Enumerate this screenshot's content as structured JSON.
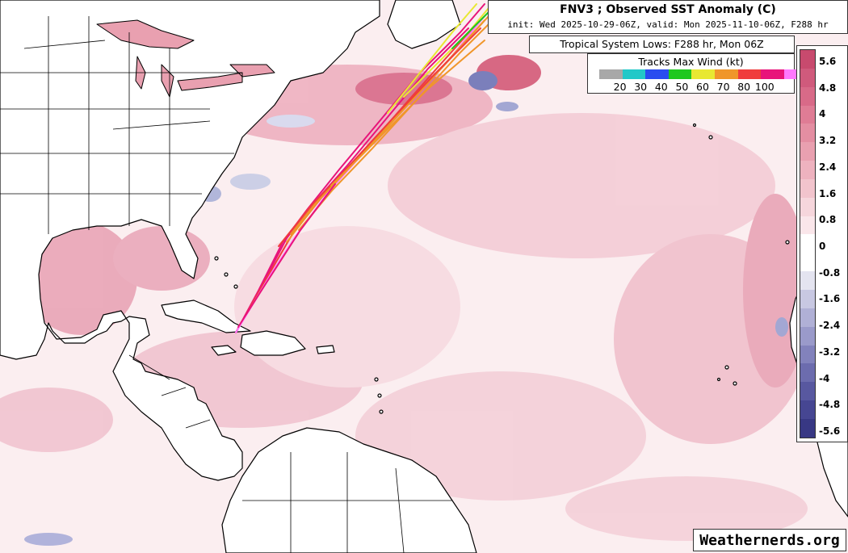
{
  "header": {
    "title": "FNV3 ; Observed SST Anomaly (C)",
    "subtitle": "init: Wed 2025-10-29-06Z, valid: Mon 2025-11-10-06Z, F288 hr"
  },
  "lows_label": "Tropical System Lows: F288 hr, Mon 06Z",
  "track_legend": {
    "title": "Tracks Max Wind (kt)",
    "labels": [
      "20",
      "30",
      "40",
      "50",
      "60",
      "70",
      "80",
      "100"
    ],
    "colors": [
      "#a8a8a8",
      "#22c8c8",
      "#2a4cf0",
      "#1ec81e",
      "#e8e832",
      "#f0962a",
      "#f03c3c",
      "#e8147a",
      "#ff78ff"
    ]
  },
  "colorbar": {
    "labels": [
      "5.6",
      "4.8",
      "4",
      "3.2",
      "2.4",
      "1.6",
      "0.8",
      "0",
      "-0.8",
      "-1.6",
      "-2.4",
      "-3.2",
      "-4",
      "-4.8",
      "-5.6"
    ],
    "colors": [
      "#c84a6e",
      "#d05a7c",
      "#d86a88",
      "#df7c95",
      "#e48ea2",
      "#e9a0b0",
      "#eeb2bf",
      "#f2c4cd",
      "#f6d6dc",
      "#fae6ea",
      "#ffffff",
      "#ffffff",
      "#e4e4f0",
      "#c8c8e2",
      "#b0b0d6",
      "#9a9aca",
      "#8282bc",
      "#6c6cae",
      "#5858a0",
      "#464692",
      "#383884"
    ]
  },
  "brand": "Weathernerds.org",
  "map_colors": {
    "ocean_base": "#fbeef0",
    "warm_anomaly": "#e7a2b4",
    "strong_warm": "#d45a78",
    "cool_anomaly": "#8a90c8",
    "land": "#ffffff",
    "border": "#000000"
  },
  "tracks": {
    "description_colors": [
      "#e8147a",
      "#f03c3c",
      "#f0962a",
      "#e8e832",
      "#1ec81e"
    ]
  }
}
